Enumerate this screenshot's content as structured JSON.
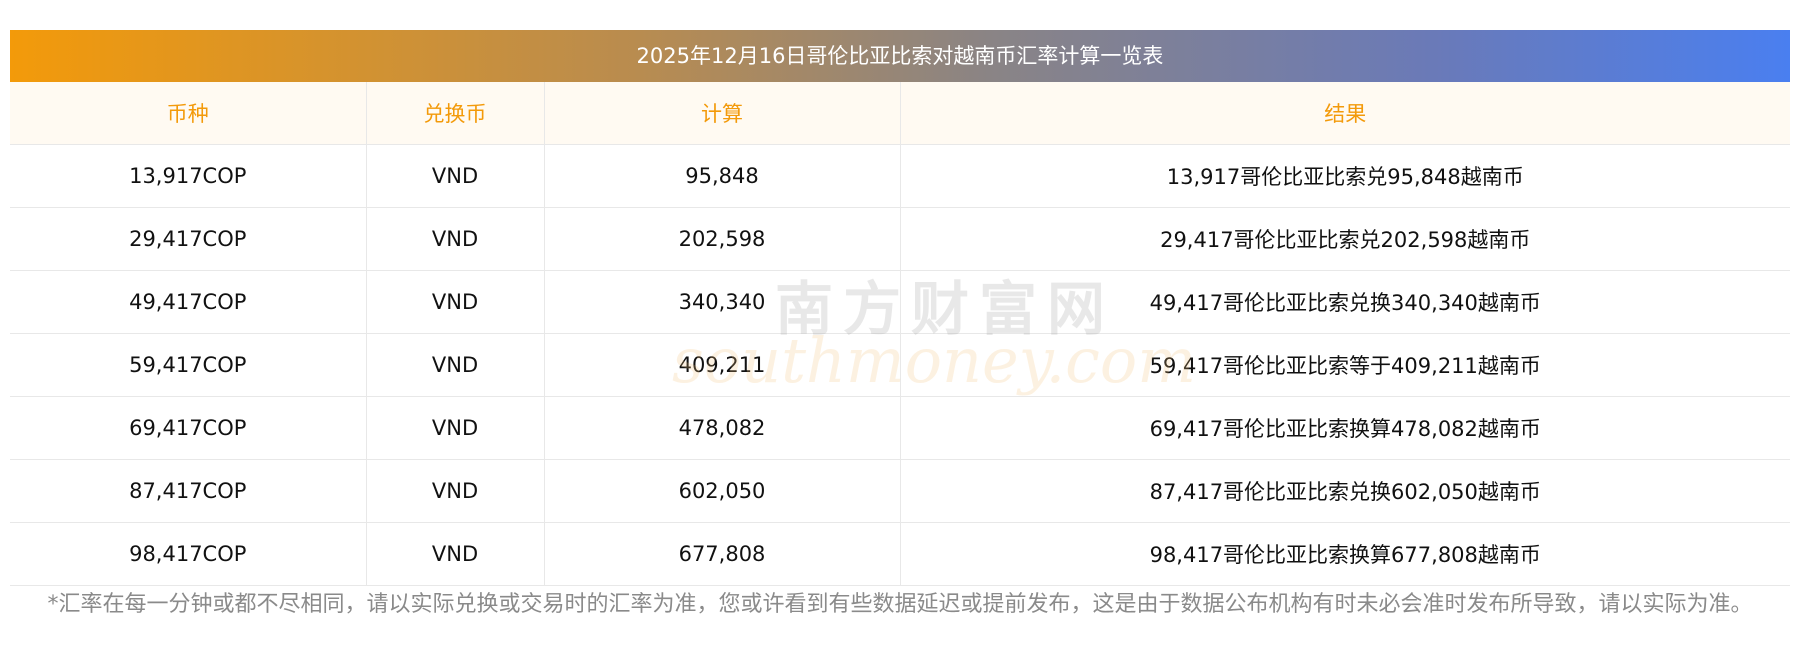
{
  "title": "2025年12月16日哥伦比亚比索对越南币汇率计算一览表",
  "headers": {
    "currency": "币种",
    "exchange": "兑换币",
    "calc": "计算",
    "result": "结果"
  },
  "rows": [
    {
      "currency": "13,917COP",
      "exchange": "VND",
      "calc": "95,848",
      "result": "13,917哥伦比亚比索兑95,848越南币"
    },
    {
      "currency": "29,417COP",
      "exchange": "VND",
      "calc": "202,598",
      "result": "29,417哥伦比亚比索兑202,598越南币"
    },
    {
      "currency": "49,417COP",
      "exchange": "VND",
      "calc": "340,340",
      "result": "49,417哥伦比亚比索兑换340,340越南币"
    },
    {
      "currency": "59,417COP",
      "exchange": "VND",
      "calc": "409,211",
      "result": "59,417哥伦比亚比索等于409,211越南币"
    },
    {
      "currency": "69,417COP",
      "exchange": "VND",
      "calc": "478,082",
      "result": "69,417哥伦比亚比索换算478,082越南币"
    },
    {
      "currency": "87,417COP",
      "exchange": "VND",
      "calc": "602,050",
      "result": "87,417哥伦比亚比索兑换602,050越南币"
    },
    {
      "currency": "98,417COP",
      "exchange": "VND",
      "calc": "677,808",
      "result": "98,417哥伦比亚比索换算677,808越南币"
    }
  ],
  "watermark": {
    "cn": "南方财富网",
    "en": "southmoney.com"
  },
  "footnote": "*汇率在每一分钟或都不尽相同，请以实际兑换或交易时的汇率为准，您或许看到有些数据延迟或提前发布，这是由于数据公布机构有时未必会准时发布所导致，请以实际为准。",
  "colors": {
    "header_text": "#f39a0a",
    "gradient_start": "#f39a0a",
    "gradient_end": "#4a7ff0",
    "footnote_text": "#8a8a8a"
  }
}
